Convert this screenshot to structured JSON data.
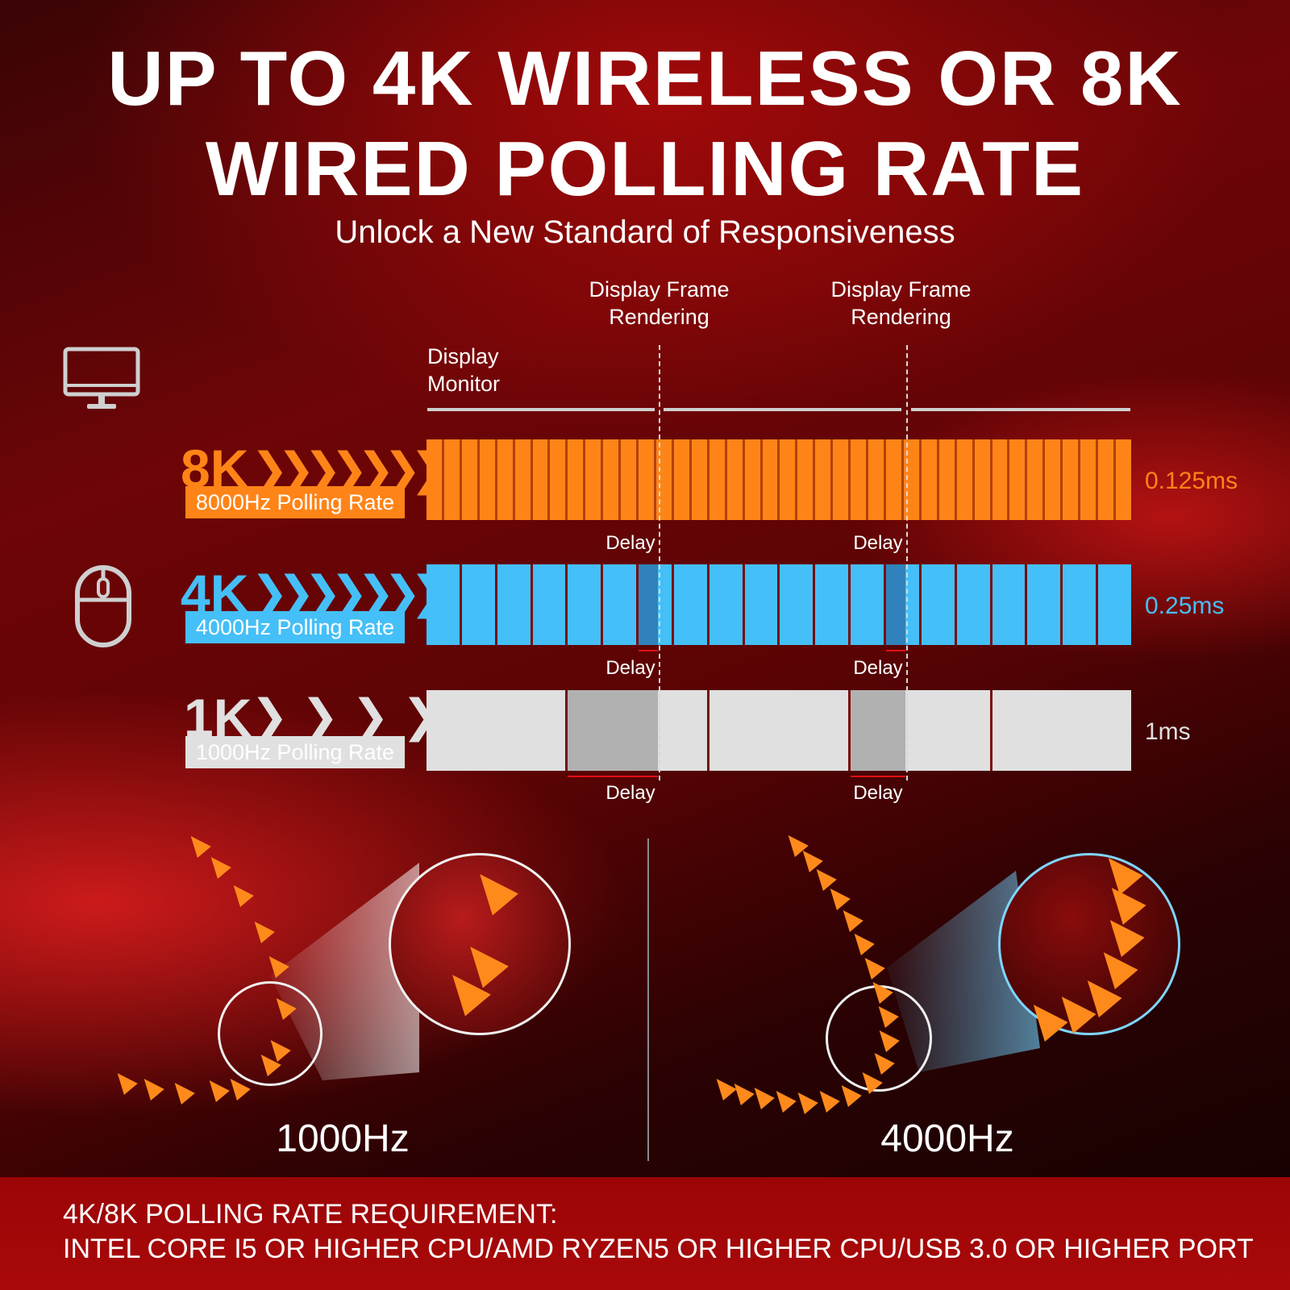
{
  "title": {
    "line1": "UP TO 4K WIRELESS OR 8K",
    "line2": "WIRED POLLING RATE"
  },
  "subtitle": "Unlock a New Standard of Responsiveness",
  "diagram": {
    "frame_label_1": "Display Frame\nRendering",
    "frame_label_2": "Display Frame\nRendering",
    "monitor_label": "Display\nMonitor",
    "delay_label": "Delay",
    "rows": [
      {
        "big": "8K",
        "chevrons": "❯❯❯❯❯❯❯❯❯",
        "tag": "8000Hz Polling Rate",
        "value": "0.125ms",
        "color": "#ff8418"
      },
      {
        "big": "4K",
        "chevrons": "❯❯❯❯❯❯❯",
        "tag": "4000Hz Polling Rate",
        "value": "0.25ms",
        "color": "#45bff7"
      },
      {
        "big": "1K",
        "chevrons": "❯ ❯ ❯ ❯",
        "tag": "1000Hz Polling Rate",
        "value": "1ms",
        "color": "#e0e0e0"
      }
    ]
  },
  "icons": {
    "monitor": "monitor-icon",
    "mouse": "mouse-icon",
    "cursor": "cursor-arrow-icon"
  },
  "comparison": {
    "left_label": "1000Hz",
    "right_label": "4000Hz"
  },
  "requirement": {
    "heading": "4K/8K POLLING RATE REQUIREMENT:",
    "text": "INTEL CORE I5 OR HIGHER CPU/AMD RYZEN5 OR HIGHER CPU/USB 3.0 OR HIGHER PORT"
  }
}
